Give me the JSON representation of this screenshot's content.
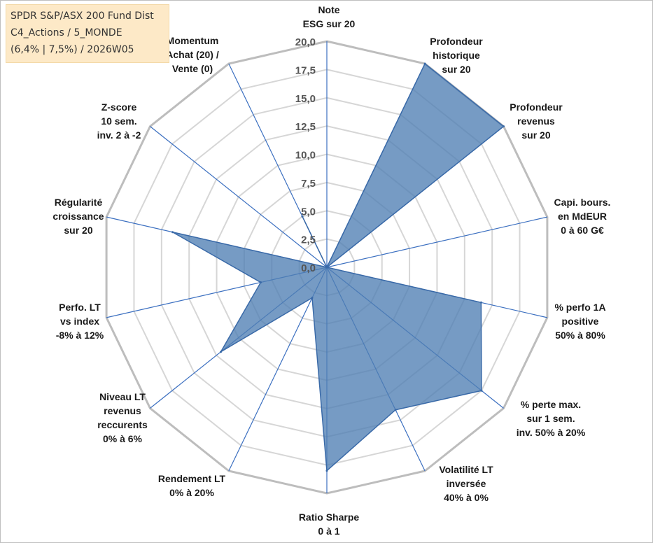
{
  "title_lines": [
    "SPDR S&P/ASX 200 Fund Dist",
    "C4_Actions / 5_MONDE",
    "(6,4% | 7,5%) / 2026W05"
  ],
  "colors": {
    "fill": "#4f7fb4",
    "stroke": "#3a6aa8",
    "grid": "#c8c8c8",
    "spoke": "#3b6fc0",
    "title_bg": "#fde9c7"
  },
  "chart_data": {
    "type": "radar",
    "title": "SPDR S&P/ASX 200 Fund Dist",
    "rmin": 0,
    "rmax": 20,
    "ticks": [
      "0,0",
      "2,5",
      "5,0",
      "7,5",
      "10,0",
      "12,5",
      "15,0",
      "17,5",
      "20,0"
    ],
    "tick_values": [
      0,
      2.5,
      5,
      7.5,
      10,
      12.5,
      15,
      17.5,
      20
    ],
    "axes": [
      {
        "label": [
          "Note",
          "ESG sur 20"
        ],
        "value": 0
      },
      {
        "label": [
          "Profondeur",
          "historique",
          "sur 20"
        ],
        "value": 20
      },
      {
        "label": [
          "Profondeur",
          "revenus",
          "sur 20"
        ],
        "value": 20
      },
      {
        "label": [
          "Capi. bours.",
          "en MdEUR",
          "0 à 60 G€"
        ],
        "value": 0
      },
      {
        "label": [
          "% perfo 1A",
          "positive",
          "50% à 80%"
        ],
        "value": 14
      },
      {
        "label": [
          "% perte max.",
          "sur 1 sem.",
          "inv. 50% à 20%"
        ],
        "value": 17.5
      },
      {
        "label": [
          "Volatilité LT",
          "inversée",
          "40% à 0%"
        ],
        "value": 14
      },
      {
        "label": [
          "Ratio Sharpe",
          "0 à 1"
        ],
        "value": 18
      },
      {
        "label": [
          "Rendement LT",
          "0% à 20%"
        ],
        "value": 3
      },
      {
        "label": [
          "Niveau LT",
          "revenus",
          "reccurents",
          "0% à 6%"
        ],
        "value": 12
      },
      {
        "label": [
          "Perfo. LT",
          "vs index",
          "-8% à 12%"
        ],
        "value": 6
      },
      {
        "label": [
          "Régularité",
          "croissance",
          "sur 20"
        ],
        "value": 14
      },
      {
        "label": [
          "Z-score",
          "10 sem.",
          "inv. 2 à -2"
        ],
        "value": 0
      },
      {
        "label": [
          "Momentum",
          "Achat (20) /",
          "Vente (0)"
        ],
        "value": 5
      }
    ]
  }
}
